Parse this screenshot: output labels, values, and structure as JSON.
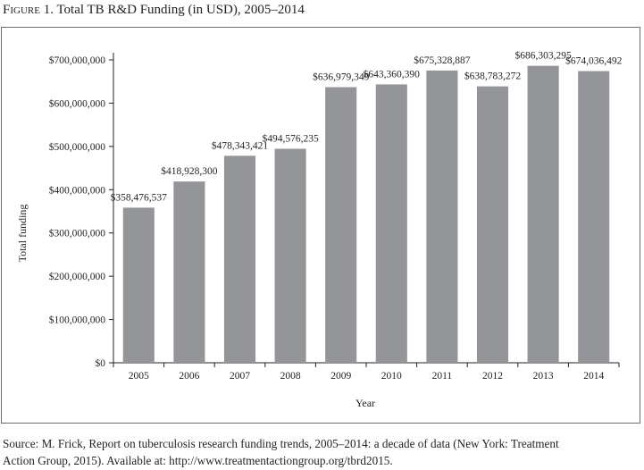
{
  "figure": {
    "label": "Figure 1.",
    "title": "Total TB R&D Funding (in USD), 2005–2014"
  },
  "chart_data": {
    "type": "bar",
    "categories": [
      "2005",
      "2006",
      "2007",
      "2008",
      "2009",
      "2010",
      "2011",
      "2012",
      "2013",
      "2014"
    ],
    "values": [
      358476537,
      418928300,
      478343421,
      494576235,
      636979349,
      643360390,
      675328887,
      638783272,
      686303295,
      674036492
    ],
    "data_labels": [
      "$358,476,537",
      "$418,928,300",
      "$478,343,421",
      "$494,576,235",
      "$636,979,349",
      "$643,360,390",
      "$675,328,887",
      "$638,783,272",
      "$686,303,295",
      "$674,036,492"
    ],
    "xlabel": "Year",
    "ylabel": "Total funding",
    "ylim": [
      0,
      700000000
    ],
    "yticks": [
      0,
      100000000,
      200000000,
      300000000,
      400000000,
      500000000,
      600000000,
      700000000
    ],
    "ytick_labels": [
      "$0",
      "$100,000,000",
      "$200,000,000",
      "$300,000,000",
      "$400,000,000",
      "$500,000,000",
      "$600,000,000",
      "$700,000,000"
    ],
    "grid": false,
    "bar_color": "#939598"
  },
  "source": {
    "line1": "Source: M. Frick, Report on tuberculosis research funding trends, 2005–2014: a decade of data (New York: Treatment",
    "line2": "Action Group, 2015). Available at: http://www.treatmentactiongroup.org/tbrd2015."
  }
}
